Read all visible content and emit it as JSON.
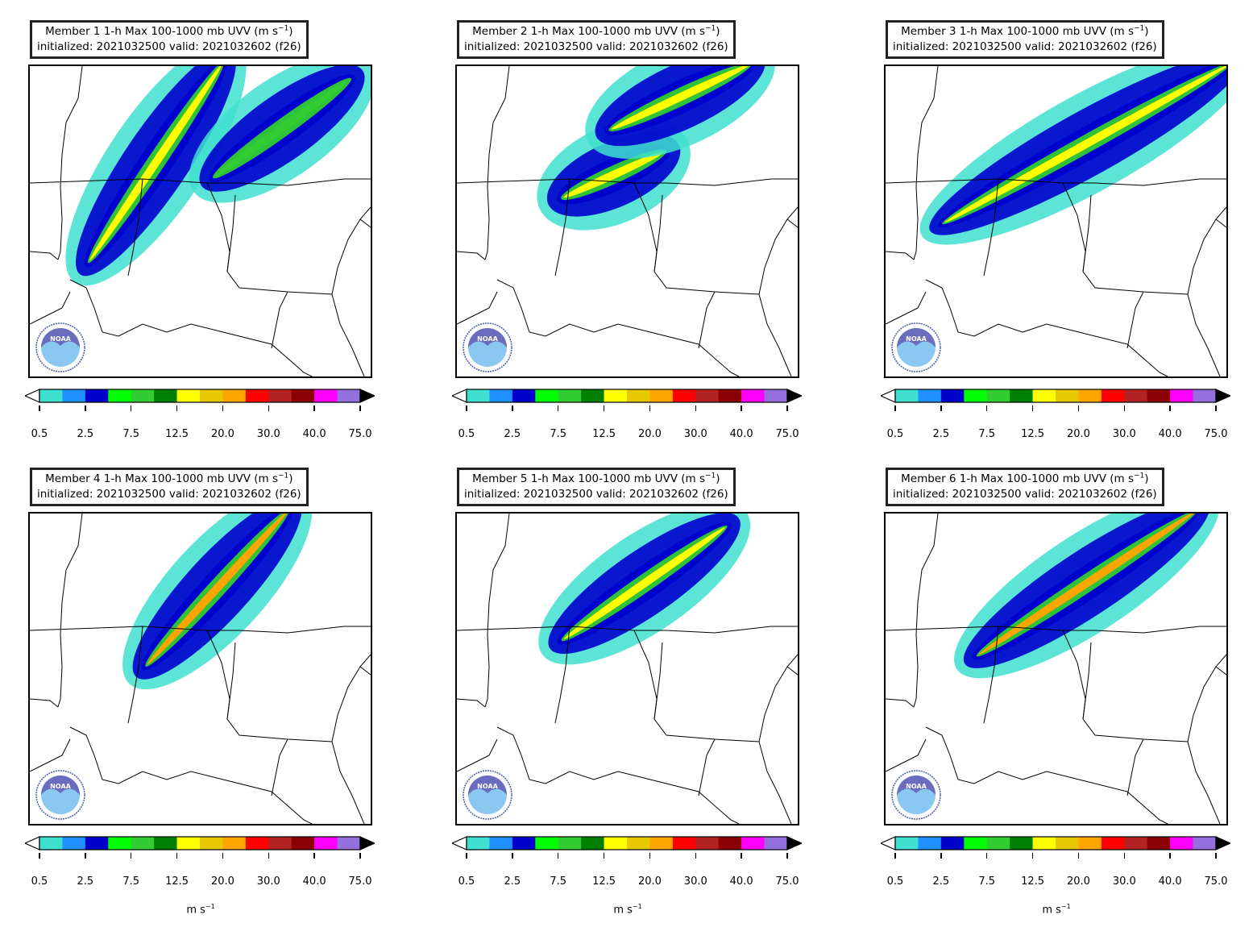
{
  "panels": [
    {
      "title_line1": "Member 1 1-h Max 100-1000 mb UVV (m s",
      "title_exp": "−1",
      "title_tail": ")",
      "title_line2": "initialized: 2021032500 valid: 2021032602 (f26)",
      "unit_label": ""
    },
    {
      "title_line1": "Member 2 1-h Max 100-1000 mb UVV (m s",
      "title_exp": "−1",
      "title_tail": ")",
      "title_line2": "initialized: 2021032500 valid: 2021032602 (f26)",
      "unit_label": ""
    },
    {
      "title_line1": "Member 3 1-h Max 100-1000 mb UVV (m s",
      "title_exp": "−1",
      "title_tail": ")",
      "title_line2": "initialized: 2021032500 valid: 2021032602 (f26)",
      "unit_label": ""
    },
    {
      "title_line1": "Member 4 1-h Max 100-1000 mb UVV (m s",
      "title_exp": "−1",
      "title_tail": ")",
      "title_line2": "initialized: 2021032500 valid: 2021032602 (f26)",
      "unit_label": "m s",
      "unit_exp": "−1"
    },
    {
      "title_line1": "Member 5 1-h Max 100-1000 mb UVV (m s",
      "title_exp": "−1",
      "title_tail": ")",
      "title_line2": "initialized: 2021032500 valid: 2021032602 (f26)",
      "unit_label": "m s",
      "unit_exp": "−1"
    },
    {
      "title_line1": "Member 6 1-h Max 100-1000 mb UVV (m s",
      "title_exp": "−1",
      "title_tail": ")",
      "title_line2": "initialized: 2021032500 valid: 2021032602 (f26)",
      "unit_label": "m s",
      "unit_exp": "−1"
    }
  ],
  "colorbar": {
    "colors": [
      "#40e0d0",
      "#1e90ff",
      "#0000cd",
      "#00ff00",
      "#32cd32",
      "#008000",
      "#ffff00",
      "#e6c800",
      "#ffa500",
      "#ff0000",
      "#b22222",
      "#8b0000",
      "#ff00ff",
      "#9370db"
    ],
    "extend_low_color": "#ffffff",
    "extend_high_color": "#000000",
    "tick_labels": [
      "0.5",
      "2.5",
      "7.5",
      "12.5",
      "20.0",
      "30.0",
      "40.0",
      "75.0"
    ]
  },
  "logo": {
    "icon": "noaa-logo-icon",
    "text": "NOAA"
  },
  "members": [
    {
      "bands": [
        {
          "value": 12.5,
          "from": [
            0.18,
            0.62
          ],
          "to": [
            0.56,
            0.0
          ]
        },
        {
          "value": 7.5,
          "from": [
            0.55,
            0.35
          ],
          "to": [
            0.93,
            0.05
          ]
        }
      ]
    },
    {
      "bands": [
        {
          "value": 12.5,
          "from": [
            0.32,
            0.42
          ],
          "to": [
            0.6,
            0.28
          ]
        },
        {
          "value": 12.5,
          "from": [
            0.46,
            0.2
          ],
          "to": [
            0.85,
            0.0
          ]
        }
      ]
    },
    {
      "bands": [
        {
          "value": 12.5,
          "from": [
            0.18,
            0.5
          ],
          "to": [
            1.0,
            0.0
          ]
        }
      ]
    },
    {
      "bands": [
        {
          "value": 20.0,
          "from": [
            0.35,
            0.48
          ],
          "to": [
            0.75,
            0.0
          ]
        }
      ]
    },
    {
      "bands": [
        {
          "value": 12.5,
          "from": [
            0.32,
            0.4
          ],
          "to": [
            0.78,
            0.05
          ]
        }
      ]
    },
    {
      "bands": [
        {
          "value": 20.0,
          "from": [
            0.28,
            0.45
          ],
          "to": [
            0.9,
            0.0
          ]
        }
      ]
    }
  ]
}
